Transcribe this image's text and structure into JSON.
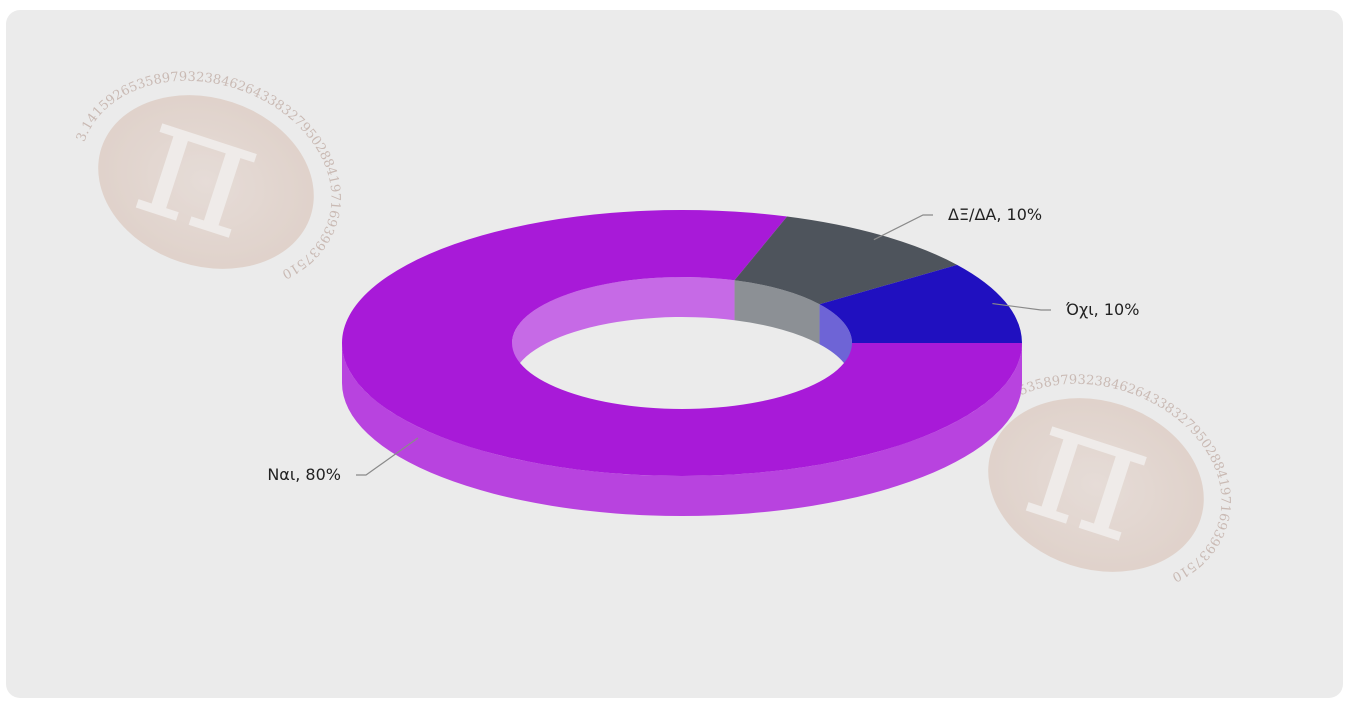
{
  "chart_data": {
    "type": "pie",
    "style": "3d-donut",
    "title": "",
    "slices": [
      {
        "label": "Ναι",
        "value": 80,
        "label_text": "Ναι, 80%",
        "color": "#a81ad8"
      },
      {
        "label": "ΔΞ/ΔΑ",
        "value": 10,
        "label_text": "ΔΞ/ΔΑ, 10%",
        "color": "#4e545c"
      },
      {
        "label": "Όχι",
        "value": 10,
        "label_text": "Όχι, 10%",
        "color": "#2010c0"
      }
    ],
    "background_color": "#ebebeb"
  },
  "watermark": {
    "symbol": "π",
    "digits": "3.14159265358979323846264338327950288419716939937510"
  }
}
